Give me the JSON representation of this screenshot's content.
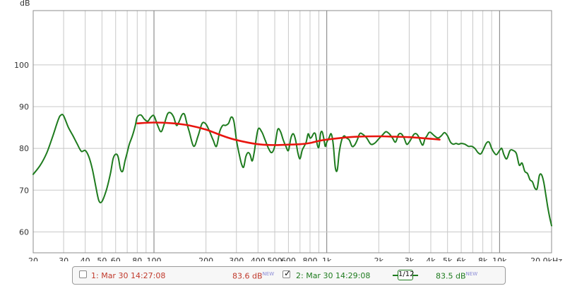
{
  "chart_data": {
    "type": "line",
    "ylabel": "dB",
    "x_scale": "log",
    "xlim": [
      20,
      20000
    ],
    "ylim": [
      55,
      113
    ],
    "yticks": [
      60,
      70,
      80,
      90,
      100
    ],
    "xticks": [
      20,
      30,
      40,
      50,
      60,
      80,
      100,
      200,
      300,
      400,
      500,
      600,
      800,
      1000,
      2000,
      3000,
      4000,
      5000,
      6000,
      8000,
      10000,
      20000
    ],
    "xtick_labels": [
      "20",
      "30",
      "40",
      "50",
      "60",
      "80",
      "100",
      "200",
      "300",
      "400",
      "500",
      "600",
      "800",
      "1k",
      "2k",
      "3k",
      "4k",
      "5k",
      "6k",
      "8k",
      "10k",
      "20.0kHz"
    ],
    "grid": true,
    "series": [
      {
        "name": "1: Mar 30 14:27:08",
        "color": "#e8150f",
        "x": [
          80,
          100,
          130,
          160,
          200,
          250,
          300,
          400,
          500,
          600,
          700,
          800,
          900,
          1000,
          1200,
          1500,
          2000,
          2500,
          3000,
          3500,
          4000,
          4500
        ],
        "y": [
          86,
          86.2,
          86,
          85.5,
          84.5,
          83,
          82,
          81,
          80.8,
          80.9,
          81,
          81.3,
          81.8,
          82.1,
          82.5,
          82.8,
          82.9,
          82.8,
          82.7,
          82.5,
          82.3,
          82.1
        ]
      },
      {
        "name": "2: Mar 30 14:29:08",
        "color": "#1e7b1e",
        "x": [
          20,
          22,
          24,
          26,
          28,
          29,
          30,
          32,
          34,
          36,
          38,
          40,
          42,
          44,
          46,
          48,
          50,
          53,
          56,
          58,
          60,
          62,
          64,
          66,
          68,
          70,
          72,
          75,
          78,
          80,
          84,
          88,
          92,
          96,
          100,
          105,
          110,
          115,
          120,
          125,
          130,
          135,
          140,
          145,
          150,
          155,
          160,
          170,
          180,
          190,
          200,
          210,
          220,
          230,
          240,
          250,
          260,
          270,
          280,
          290,
          300,
          310,
          320,
          330,
          340,
          350,
          360,
          370,
          380,
          400,
          420,
          440,
          460,
          480,
          500,
          520,
          540,
          560,
          580,
          600,
          620,
          640,
          660,
          680,
          700,
          720,
          740,
          760,
          780,
          800,
          820,
          840,
          860,
          880,
          900,
          920,
          940,
          960,
          980,
          1000,
          1030,
          1060,
          1090,
          1120,
          1150,
          1180,
          1220,
          1260,
          1300,
          1350,
          1400,
          1450,
          1500,
          1550,
          1600,
          1700,
          1800,
          1900,
          2000,
          2100,
          2200,
          2300,
          2400,
          2500,
          2600,
          2700,
          2800,
          2900,
          3000,
          3100,
          3200,
          3300,
          3400,
          3500,
          3600,
          3700,
          3800,
          3900,
          4000,
          4200,
          4400,
          4600,
          4800,
          5000,
          5200,
          5400,
          5600,
          5800,
          6000,
          6300,
          6600,
          6900,
          7200,
          7500,
          7800,
          8100,
          8400,
          8700,
          9000,
          9300,
          9600,
          10000,
          10300,
          10600,
          11000,
          11500,
          12000,
          12500,
          13000,
          13500,
          14000,
          14500,
          15000,
          15500,
          16000,
          16500,
          17000,
          17500,
          18000,
          18500,
          19000,
          19500,
          20000
        ],
        "y": [
          73.8,
          76,
          79,
          83,
          87,
          88,
          87.8,
          85,
          83,
          81,
          79.3,
          79.5,
          78,
          75,
          71,
          67.5,
          67.3,
          70,
          74,
          77.5,
          78.6,
          78,
          75,
          74.6,
          77,
          79,
          81,
          83,
          85.5,
          87.5,
          88,
          87,
          86.5,
          87.5,
          87.8,
          85.5,
          84,
          86,
          88.3,
          88.5,
          87.5,
          85.5,
          86.5,
          88,
          88.2,
          86,
          84,
          80.5,
          83,
          86,
          85.8,
          84,
          82,
          80.5,
          84,
          85.5,
          85.5,
          86,
          87.5,
          86.5,
          82,
          79,
          76.5,
          75.5,
          78,
          79,
          78.5,
          77,
          79,
          84.5,
          84,
          82,
          80,
          79,
          80.5,
          84.5,
          84,
          82,
          80.5,
          79.5,
          82.5,
          83.5,
          82,
          79,
          77.5,
          79.5,
          80.5,
          81.5,
          83.5,
          82.5,
          82.8,
          83.6,
          83.4,
          81,
          80.3,
          83.5,
          84,
          82.5,
          80.5,
          81.5,
          82.5,
          83.5,
          81,
          75.5,
          74.8,
          79,
          82,
          83,
          82.5,
          82,
          80.5,
          80.8,
          82,
          83.5,
          83.5,
          82.5,
          81,
          81.3,
          82.3,
          83.2,
          84,
          83.5,
          82.5,
          81.5,
          83.3,
          83.5,
          82.5,
          81,
          81.5,
          82.5,
          83.4,
          83.5,
          82.8,
          81.5,
          80.8,
          82.3,
          83,
          83.8,
          83.8,
          83,
          82.5,
          83,
          83.8,
          83,
          81.5,
          81,
          81.2,
          81,
          81.2,
          81,
          80.5,
          80.5,
          80,
          79,
          78.7,
          80,
          81.3,
          81.5,
          80,
          79,
          78.5,
          79.5,
          80,
          78.5,
          77.5,
          79.5,
          79.5,
          78.8,
          76,
          76.5,
          74.5,
          74,
          72.5,
          72,
          70.5,
          70.4,
          73.5,
          73.7,
          72,
          69,
          66,
          63.5,
          61.5
        ]
      }
    ]
  },
  "legend": {
    "item1_label": "1: Mar 30 14:27:08",
    "item1_level": "83.6 dB",
    "item1_new": "NEW",
    "item1_checked": false,
    "item2_label": "2: Mar 30 14:29:08",
    "item2_level": "83.5 dB",
    "item2_new": "NEW",
    "item2_checked": true,
    "smoothing_label": "1/12",
    "checkmark": "✓"
  },
  "colors": {
    "background": "#ffffff",
    "grid": "#c8c8c8",
    "grid_major": "#7a7a7a",
    "frame": "#8c8c8c"
  }
}
